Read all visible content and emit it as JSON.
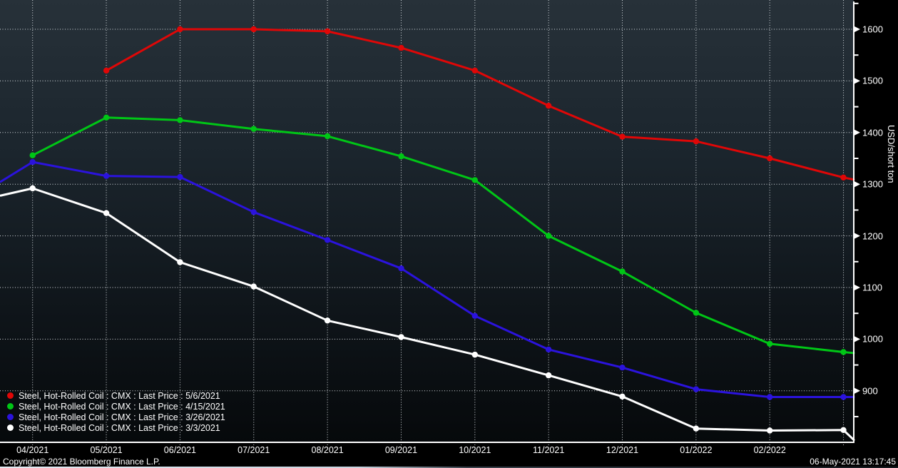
{
  "window": {
    "footer": {
      "copyright": "Copyright© 2021 Bloomberg Finance L.P.",
      "timestamp": "06-May-2021 13:17:45"
    }
  },
  "chart_data": {
    "type": "line",
    "title": "",
    "grid": true,
    "legend_position": "bottom-left",
    "y_axis": {
      "label": "USD/short ton",
      "position": "right",
      "major_ticks": [
        1600,
        1500,
        1400,
        1300,
        1200,
        1100,
        1000,
        900
      ],
      "minor_ticks": [
        1650,
        1550,
        1450,
        1350,
        1250,
        1150,
        1050,
        950,
        850
      ],
      "range_approx": [
        800,
        1655
      ]
    },
    "x_axis": {
      "labels": [
        "04/2021",
        "05/2021",
        "06/2021",
        "07/2021",
        "08/2021",
        "09/2021",
        "10/2021",
        "11/2021",
        "12/2021",
        "01/2022",
        "02/2022"
      ],
      "points_count": 12,
      "last_gridline_unlabeled": true
    },
    "colors": {
      "background_top": "#273139",
      "background_bottom": "#06090b",
      "gridline": "#e6ecf0",
      "axis": "#ffffff"
    },
    "series": [
      {
        "name": "Steel, Hot-Rolled Coil : CMX : Last Price : 5/6/2021",
        "color": "#e00707",
        "values": [
          null,
          1520,
          1600,
          1600,
          1596,
          1564,
          1520,
          1452,
          1392,
          1383,
          1350,
          1313
        ],
        "edge_start": null,
        "edge_end": 1309
      },
      {
        "name": "Steel, Hot-Rolled Coil : CMX : Last Price : 4/15/2021",
        "color": "#00c616",
        "values": [
          1356,
          1429,
          1424,
          1407,
          1393,
          1354,
          1308,
          1200,
          1131,
          1051,
          991,
          975
        ],
        "edge_start": null,
        "edge_end": 973
      },
      {
        "name": "Steel, Hot-Rolled Coil : CMX : Last Price : 3/26/2021",
        "color": "#2b13dd",
        "values": [
          1343,
          1316,
          1314,
          1246,
          1192,
          1137,
          1045,
          980,
          945,
          903,
          888,
          888
        ],
        "edge_start": 1305,
        "edge_end": 888
      },
      {
        "name": "Steel, Hot-Rolled Coil : CMX : Last Price : 3/3/2021",
        "color": "#ffffff",
        "values": [
          1292,
          1244,
          1149,
          1102,
          1036,
          1004,
          970,
          930,
          889,
          827,
          823,
          824
        ],
        "edge_start": 1278,
        "edge_end": 805
      }
    ]
  }
}
